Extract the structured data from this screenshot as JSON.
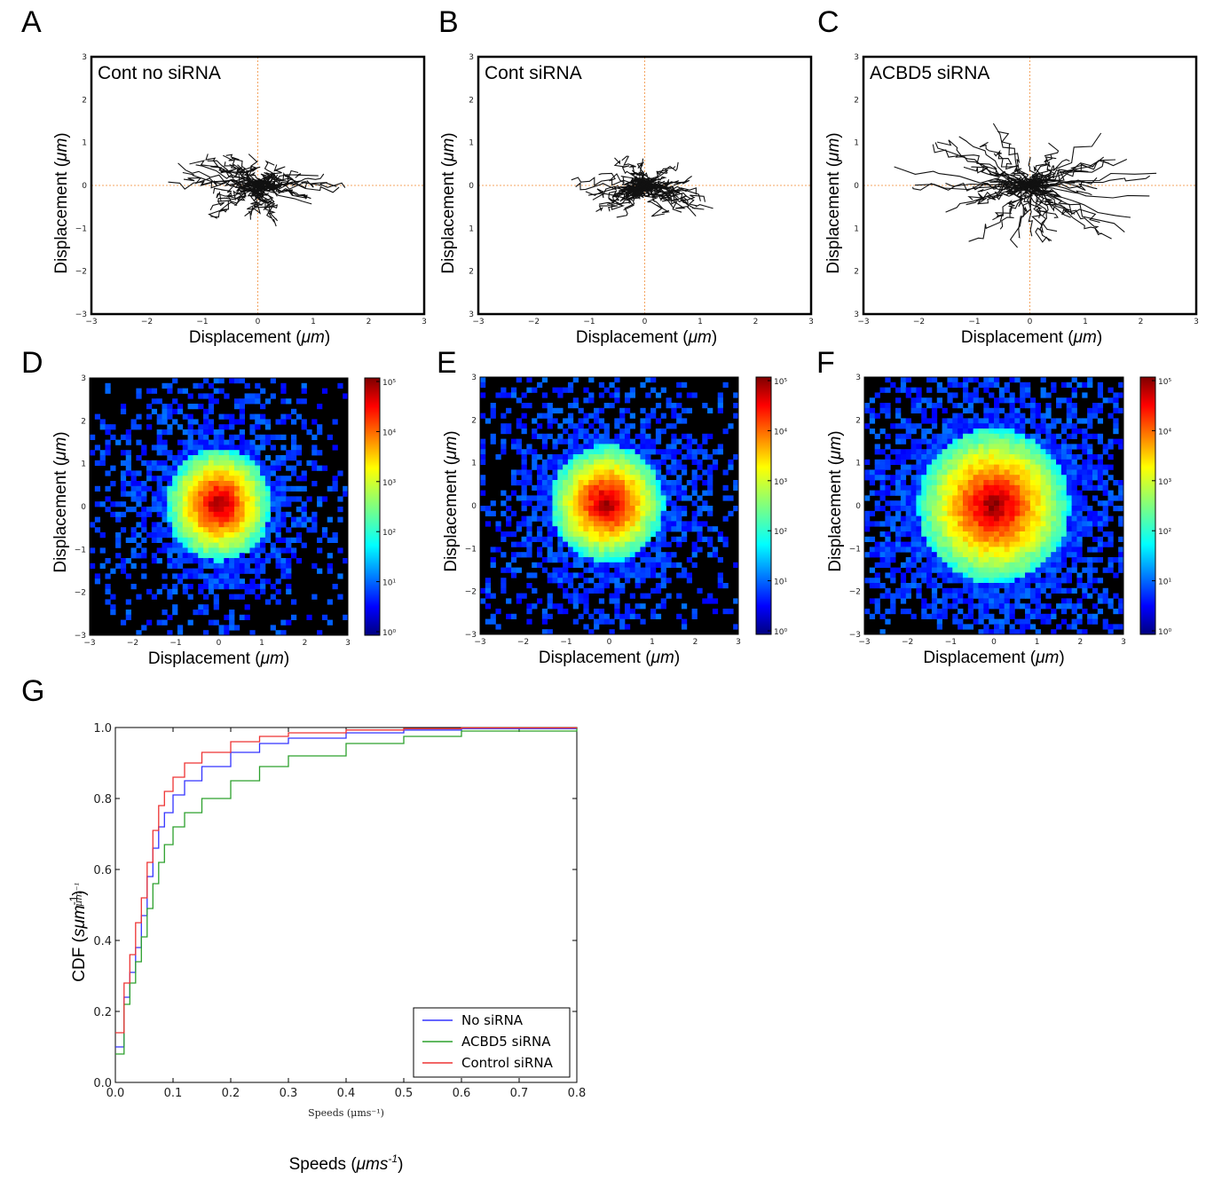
{
  "panel_labels": [
    "A",
    "B",
    "C",
    "D",
    "E",
    "F",
    "G"
  ],
  "chart_data": [
    {
      "id": "A",
      "type": "line",
      "inset_title": "Cont no siRNA",
      "xlabel_text": "Displacement (",
      "xlabel_unit": "μm",
      "xlabel_close": ")",
      "ylabel_text": "Displacement (",
      "ylabel_unit": "μm",
      "ylabel_close": ")",
      "xlim": [
        -3,
        3
      ],
      "ylim": [
        -3,
        3
      ],
      "xticks": [
        "−3",
        "−2",
        "−1",
        "0",
        "1",
        "2",
        "3"
      ],
      "yticks": [
        "3",
        "2",
        "1",
        "0",
        "−1",
        "−2",
        "−3"
      ],
      "reference_lines": {
        "x": 0,
        "y": 0,
        "color": "#f4a460"
      },
      "trajectories": {
        "count": 60,
        "spread": 0.55,
        "seed": 11
      }
    },
    {
      "id": "B",
      "type": "line",
      "inset_title": "Cont siRNA",
      "xlabel_text": "Displacement (",
      "xlabel_unit": "μm",
      "xlabel_close": ")",
      "ylabel_text": "Displacement (",
      "ylabel_unit": "μm",
      "ylabel_close": ")",
      "xlim": [
        -3,
        3
      ],
      "ylim": [
        -3,
        3
      ],
      "xticks": [
        "−3",
        "−2",
        "−1",
        "0",
        "1",
        "2",
        "3"
      ],
      "yticks": [
        "3",
        "2",
        "1",
        "0",
        "1",
        "2",
        "3"
      ],
      "reference_lines": {
        "x": 0,
        "y": 0,
        "color": "#f4a460"
      },
      "trajectories": {
        "count": 60,
        "spread": 0.5,
        "seed": 23
      }
    },
    {
      "id": "C",
      "type": "line",
      "inset_title": "ACBD5 siRNA",
      "xlabel_text": "Displacement (",
      "xlabel_unit": "μm",
      "xlabel_close": ")",
      "ylabel_text": "Displacement (",
      "ylabel_unit": "μm",
      "ylabel_close": ")",
      "xlim": [
        -3,
        3
      ],
      "ylim": [
        -3,
        3
      ],
      "xticks": [
        "−3",
        "−2",
        "−1",
        "0",
        "1",
        "2",
        "3"
      ],
      "yticks": [
        "3",
        "2",
        "1",
        "0",
        "1",
        "2",
        "3"
      ],
      "reference_lines": {
        "x": 0,
        "y": 0,
        "color": "#f4a460"
      },
      "trajectories": {
        "count": 70,
        "spread": 0.85,
        "seed": 37
      }
    },
    {
      "id": "D",
      "type": "heatmap",
      "xlabel_text": "Displacement (",
      "xlabel_unit": "μm",
      "xlabel_close": ")",
      "ylabel_text": "Displacement (",
      "ylabel_unit": "μm",
      "ylabel_close": ")",
      "xlim": [
        -3,
        3
      ],
      "ylim": [
        -3,
        3
      ],
      "xticks": [
        "−3",
        "−2",
        "−1",
        "0",
        "1",
        "2",
        "3"
      ],
      "yticks": [
        "3",
        "2",
        "1",
        "0",
        "−1",
        "−2",
        "−3"
      ],
      "center": [
        0,
        0.05
      ],
      "sigma": [
        0.55,
        0.6
      ],
      "colorbar": {
        "scale": "log",
        "ticks": [
          "10⁵",
          "10⁴",
          "10³",
          "10²",
          "10¹",
          "10⁰"
        ]
      }
    },
    {
      "id": "E",
      "type": "heatmap",
      "xlabel_text": "Displacement (",
      "xlabel_unit": "μm",
      "xlabel_close": ")",
      "ylabel_text": "Displacement (",
      "ylabel_unit": "μm",
      "ylabel_close": ")",
      "xlim": [
        -3,
        3
      ],
      "ylim": [
        -3,
        3
      ],
      "xticks": [
        "−3",
        "−2",
        "−1",
        "0",
        "1",
        "2",
        "3"
      ],
      "yticks": [
        "3",
        "2",
        "1",
        "0",
        "−1",
        "−2",
        "−3"
      ],
      "center": [
        -0.05,
        0.05
      ],
      "sigma": [
        0.6,
        0.62
      ],
      "colorbar": {
        "scale": "log",
        "ticks": [
          "10⁵",
          "10⁴",
          "10³",
          "10²",
          "10¹",
          "10⁰"
        ]
      }
    },
    {
      "id": "F",
      "type": "heatmap",
      "xlabel_text": "Displacement (",
      "xlabel_unit": "μm",
      "xlabel_close": ")",
      "ylabel_text": "Displacement (",
      "ylabel_unit": "μm",
      "ylabel_close": ")",
      "xlim": [
        -3,
        3
      ],
      "ylim": [
        -3,
        3
      ],
      "xticks": [
        "−3",
        "−2",
        "−1",
        "0",
        "1",
        "2",
        "3"
      ],
      "yticks": [
        "3",
        "2",
        "1",
        "0",
        "−1",
        "−2",
        "−3"
      ],
      "center": [
        0,
        0.0
      ],
      "sigma": [
        0.8,
        0.82
      ],
      "colorbar": {
        "scale": "log",
        "ticks": [
          "10⁵",
          "10⁴",
          "10³",
          "10²",
          "10¹",
          "10⁰"
        ]
      }
    },
    {
      "id": "G",
      "type": "line",
      "ylabel_text": "CDF (",
      "ylabel_unit": "sμm",
      "ylabel_sup": "-1",
      "ylabel_close": ")",
      "ylabel_overlap": "μm⁻¹",
      "xlabel_small": "Speeds (μms⁻¹)",
      "xlabel_text": "Speeds (",
      "xlabel_unit": "μms",
      "xlabel_sup": "-1",
      "xlabel_close": ")",
      "xlim": [
        0.0,
        0.8
      ],
      "ylim": [
        0.0,
        1.0
      ],
      "xticks": [
        "0.0",
        "0.1",
        "0.2",
        "0.3",
        "0.4",
        "0.5",
        "0.6",
        "0.7",
        "0.8"
      ],
      "yticks": [
        "1.0",
        "0.8",
        "0.6",
        "0.4",
        "0.2",
        "0.0"
      ],
      "legend": "lower-right",
      "series": [
        {
          "name": "No siRNA",
          "color": "#3333ff",
          "x": [
            0,
            0.015,
            0.025,
            0.035,
            0.045,
            0.055,
            0.065,
            0.075,
            0.085,
            0.1,
            0.12,
            0.15,
            0.2,
            0.25,
            0.3,
            0.4,
            0.5,
            0.6,
            0.8
          ],
          "y": [
            0.1,
            0.24,
            0.31,
            0.38,
            0.47,
            0.58,
            0.66,
            0.72,
            0.76,
            0.81,
            0.85,
            0.89,
            0.93,
            0.955,
            0.97,
            0.985,
            0.993,
            0.997,
            1.0
          ]
        },
        {
          "name": "ACBD5 siRNA",
          "color": "#2ca02c",
          "x": [
            0,
            0.015,
            0.025,
            0.035,
            0.045,
            0.055,
            0.065,
            0.075,
            0.085,
            0.1,
            0.12,
            0.15,
            0.2,
            0.25,
            0.3,
            0.4,
            0.5,
            0.6,
            0.8
          ],
          "y": [
            0.08,
            0.22,
            0.28,
            0.34,
            0.41,
            0.49,
            0.56,
            0.62,
            0.67,
            0.72,
            0.76,
            0.8,
            0.85,
            0.89,
            0.92,
            0.955,
            0.975,
            0.99,
            1.0
          ]
        },
        {
          "name": "Control siRNA",
          "color": "#ee3333",
          "x": [
            0,
            0.015,
            0.025,
            0.035,
            0.045,
            0.055,
            0.065,
            0.075,
            0.085,
            0.1,
            0.12,
            0.15,
            0.2,
            0.25,
            0.3,
            0.4,
            0.5,
            0.6,
            0.8
          ],
          "y": [
            0.14,
            0.28,
            0.36,
            0.45,
            0.52,
            0.62,
            0.71,
            0.78,
            0.82,
            0.86,
            0.9,
            0.93,
            0.96,
            0.975,
            0.985,
            0.993,
            0.997,
            0.999,
            1.0
          ]
        }
      ]
    }
  ]
}
